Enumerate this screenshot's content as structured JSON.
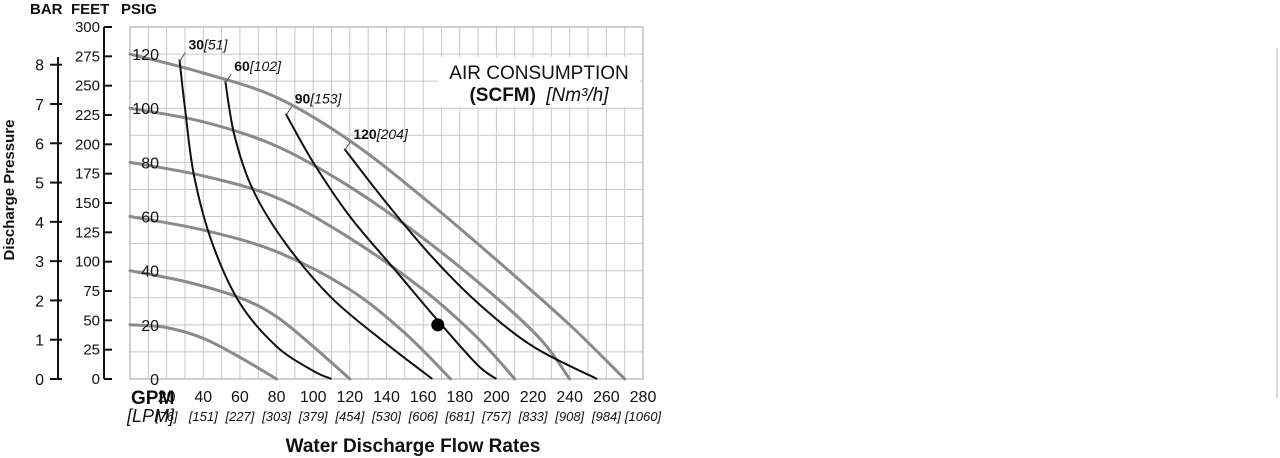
{
  "chart_data": {
    "type": "line",
    "title_line1": "AIR CONSUMPTION",
    "title_line2_bold": "(SCFM)",
    "title_line2_italic": "[Nm³/h]",
    "xlabel": "Water Discharge Flow Rates",
    "ylabel": "Discharge Pressure",
    "unit_headers": {
      "bar": "BAR",
      "feet": "FEET",
      "psig": "PSIG",
      "gpm": "GPM",
      "lpm": "[LPM]"
    },
    "xlim": [
      0,
      280
    ],
    "ylim": [
      0,
      130
    ],
    "x_ticks": [
      {
        "value": 20,
        "label": "20"
      },
      {
        "value": 40,
        "label": "40"
      },
      {
        "value": 60,
        "label": "60"
      },
      {
        "value": 80,
        "label": "80"
      },
      {
        "value": 100,
        "label": "100"
      },
      {
        "value": 120,
        "label": "120"
      },
      {
        "value": 140,
        "label": "140"
      },
      {
        "value": 160,
        "label": "160"
      },
      {
        "value": 180,
        "label": "180"
      },
      {
        "value": 200,
        "label": "200"
      },
      {
        "value": 220,
        "label": "220"
      },
      {
        "value": 240,
        "label": "240"
      },
      {
        "value": 260,
        "label": "260"
      },
      {
        "value": 280,
        "label": "280"
      }
    ],
    "lpm_ticks": [
      {
        "value": 20,
        "label": "[76]"
      },
      {
        "value": 40,
        "label": "[151]"
      },
      {
        "value": 60,
        "label": "[227]"
      },
      {
        "value": 80,
        "label": "[303]"
      },
      {
        "value": 100,
        "label": "[379]"
      },
      {
        "value": 120,
        "label": "[454]"
      },
      {
        "value": 140,
        "label": "[530]"
      },
      {
        "value": 160,
        "label": "[606]"
      },
      {
        "value": 180,
        "label": "[681]"
      },
      {
        "value": 200,
        "label": "[757]"
      },
      {
        "value": 220,
        "label": "[833]"
      },
      {
        "value": 240,
        "label": "[908]"
      },
      {
        "value": 260,
        "label": "[984]"
      },
      {
        "value": 280,
        "label": "[1060]"
      }
    ],
    "psig_ticks": [
      {
        "value": 0,
        "label": "0"
      },
      {
        "value": 20,
        "label": "20"
      },
      {
        "value": 40,
        "label": "40"
      },
      {
        "value": 60,
        "label": "60"
      },
      {
        "value": 80,
        "label": "80"
      },
      {
        "value": 100,
        "label": "100"
      },
      {
        "value": 120,
        "label": "120"
      }
    ],
    "feet_ticks": [
      {
        "value": 0,
        "label": "0"
      },
      {
        "value": 25,
        "label": "25"
      },
      {
        "value": 50,
        "label": "50"
      },
      {
        "value": 75,
        "label": "75"
      },
      {
        "value": 100,
        "label": "100"
      },
      {
        "value": 125,
        "label": "125"
      },
      {
        "value": 150,
        "label": "150"
      },
      {
        "value": 175,
        "label": "175"
      },
      {
        "value": 200,
        "label": "200"
      },
      {
        "value": 225,
        "label": "225"
      },
      {
        "value": 250,
        "label": "250"
      },
      {
        "value": 275,
        "label": "275"
      },
      {
        "value": 300,
        "label": "300"
      }
    ],
    "bar_ticks": [
      {
        "value": 0,
        "label": "0"
      },
      {
        "value": 1,
        "label": "1"
      },
      {
        "value": 2,
        "label": "2"
      },
      {
        "value": 3,
        "label": "3"
      },
      {
        "value": 4,
        "label": "4"
      },
      {
        "value": 5,
        "label": "5"
      },
      {
        "value": 6,
        "label": "6"
      },
      {
        "value": 7,
        "label": "7"
      },
      {
        "value": 8,
        "label": "8"
      }
    ],
    "pressure_curves": [
      {
        "points": [
          [
            0,
            20
          ],
          [
            20,
            19
          ],
          [
            40,
            15
          ],
          [
            60,
            8
          ],
          [
            80,
            0
          ]
        ]
      },
      {
        "points": [
          [
            0,
            40
          ],
          [
            30,
            36
          ],
          [
            60,
            30
          ],
          [
            80,
            23
          ],
          [
            100,
            12
          ],
          [
            120,
            0
          ]
        ]
      },
      {
        "points": [
          [
            0,
            60
          ],
          [
            40,
            55
          ],
          [
            80,
            47
          ],
          [
            120,
            33
          ],
          [
            150,
            17
          ],
          [
            175,
            0
          ]
        ]
      },
      {
        "points": [
          [
            0,
            80
          ],
          [
            40,
            75
          ],
          [
            80,
            67
          ],
          [
            120,
            52
          ],
          [
            160,
            33
          ],
          [
            190,
            15
          ],
          [
            210,
            0
          ]
        ]
      },
      {
        "points": [
          [
            0,
            100
          ],
          [
            40,
            95
          ],
          [
            80,
            86
          ],
          [
            120,
            71
          ],
          [
            160,
            52
          ],
          [
            200,
            30
          ],
          [
            225,
            14
          ],
          [
            240,
            0
          ]
        ]
      },
      {
        "points": [
          [
            0,
            120
          ],
          [
            40,
            113
          ],
          [
            80,
            104
          ],
          [
            120,
            88
          ],
          [
            160,
            67
          ],
          [
            200,
            44
          ],
          [
            240,
            20
          ],
          [
            270,
            0
          ]
        ]
      }
    ],
    "air_curves": [
      {
        "label_bold": "30",
        "label_italic": "[51]",
        "points": [
          [
            27,
            118
          ],
          [
            30,
            100
          ],
          [
            35,
            75
          ],
          [
            45,
            50
          ],
          [
            60,
            28
          ],
          [
            80,
            12
          ],
          [
            100,
            3
          ],
          [
            110,
            0
          ]
        ]
      },
      {
        "label_bold": "60",
        "label_italic": "[102]",
        "points": [
          [
            52,
            110
          ],
          [
            57,
            90
          ],
          [
            67,
            70
          ],
          [
            85,
            50
          ],
          [
            110,
            30
          ],
          [
            140,
            13
          ],
          [
            165,
            0
          ]
        ]
      },
      {
        "label_bold": "90",
        "label_italic": "[153]",
        "points": [
          [
            85,
            98
          ],
          [
            100,
            80
          ],
          [
            120,
            60
          ],
          [
            145,
            40
          ],
          [
            170,
            20
          ],
          [
            190,
            5
          ],
          [
            200,
            0
          ]
        ]
      },
      {
        "label_bold": "120",
        "label_italic": "[204]",
        "points": [
          [
            117,
            85
          ],
          [
            140,
            65
          ],
          [
            165,
            45
          ],
          [
            190,
            28
          ],
          [
            220,
            12
          ],
          [
            255,
            0
          ]
        ]
      }
    ],
    "marker": {
      "x": 168,
      "y": 20
    },
    "grid": true
  }
}
